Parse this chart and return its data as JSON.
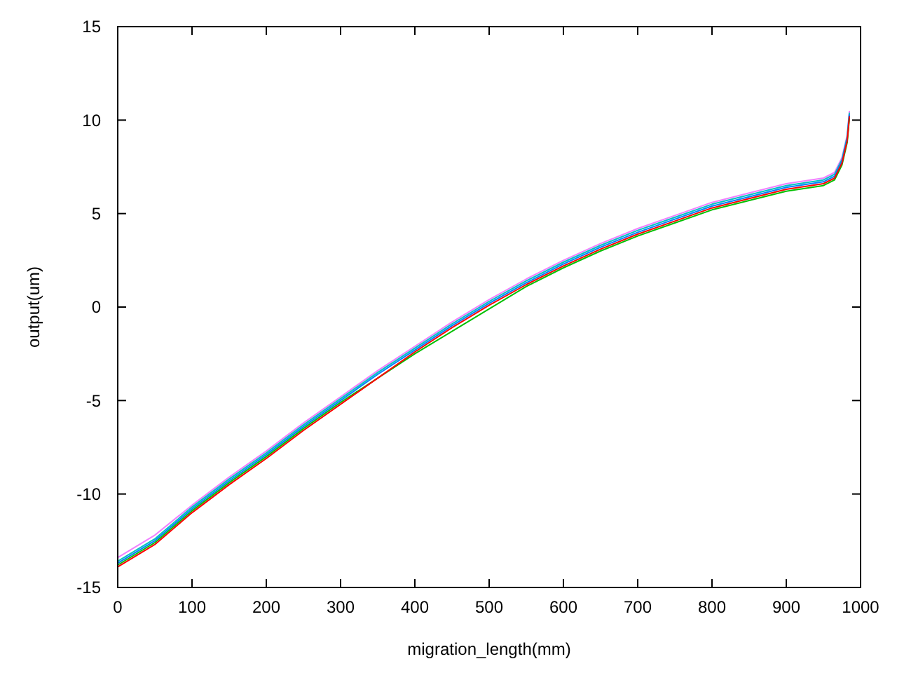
{
  "chart_data": {
    "type": "line",
    "xlabel": "migration_length(mm)",
    "ylabel": "output(um)",
    "x": [
      0,
      50,
      100,
      150,
      200,
      250,
      300,
      350,
      400,
      450,
      500,
      550,
      600,
      650,
      700,
      750,
      800,
      850,
      900,
      950,
      965,
      975,
      982,
      985
    ],
    "xlim": [
      0,
      1000
    ],
    "xticks": [
      0,
      100,
      200,
      300,
      400,
      500,
      600,
      700,
      800,
      900,
      1000
    ],
    "ylim": [
      -15,
      15
    ],
    "yticks": [
      -15,
      -10,
      -5,
      0,
      5,
      10,
      15
    ],
    "grid": false,
    "marker": "none",
    "line_style": "solid",
    "series": [
      {
        "color": "#ff0000",
        "values": [
          -13.9,
          -12.7,
          -11.0,
          -9.5,
          -8.1,
          -6.6,
          -5.2,
          -3.8,
          -2.4,
          -1.1,
          0.1,
          1.2,
          2.2,
          3.1,
          3.9,
          4.6,
          5.3,
          5.8,
          6.3,
          6.6,
          6.9,
          7.7,
          8.9,
          10.2
        ]
      },
      {
        "color": "#00c000",
        "values": [
          -13.8,
          -12.6,
          -10.9,
          -9.4,
          -8.0,
          -6.5,
          -5.1,
          -3.8,
          -2.5,
          -1.3,
          -0.1,
          1.1,
          2.1,
          3.0,
          3.8,
          4.5,
          5.2,
          5.7,
          6.2,
          6.5,
          6.8,
          7.6,
          8.8,
          10.1
        ]
      },
      {
        "color": "#0080ff",
        "values": [
          -13.7,
          -12.5,
          -10.8,
          -9.3,
          -7.9,
          -6.4,
          -5.0,
          -3.6,
          -2.3,
          -1.0,
          0.2,
          1.3,
          2.3,
          3.2,
          4.0,
          4.7,
          5.4,
          5.9,
          6.4,
          6.7,
          7.0,
          7.8,
          9.0,
          10.3
        ]
      },
      {
        "color": "#00c0c0",
        "values": [
          -13.6,
          -12.4,
          -10.7,
          -9.2,
          -7.8,
          -6.3,
          -4.9,
          -3.5,
          -2.2,
          -0.9,
          0.3,
          1.4,
          2.4,
          3.3,
          4.1,
          4.8,
          5.5,
          6.0,
          6.5,
          6.8,
          7.1,
          7.9,
          9.1,
          10.4
        ]
      },
      {
        "color": "#f080ff",
        "values": [
          -13.4,
          -12.2,
          -10.6,
          -9.1,
          -7.7,
          -6.2,
          -4.8,
          -3.4,
          -2.1,
          -0.8,
          0.4,
          1.5,
          2.5,
          3.4,
          4.2,
          4.9,
          5.6,
          6.1,
          6.6,
          6.9,
          7.2,
          8.0,
          9.2,
          10.5
        ]
      }
    ]
  }
}
